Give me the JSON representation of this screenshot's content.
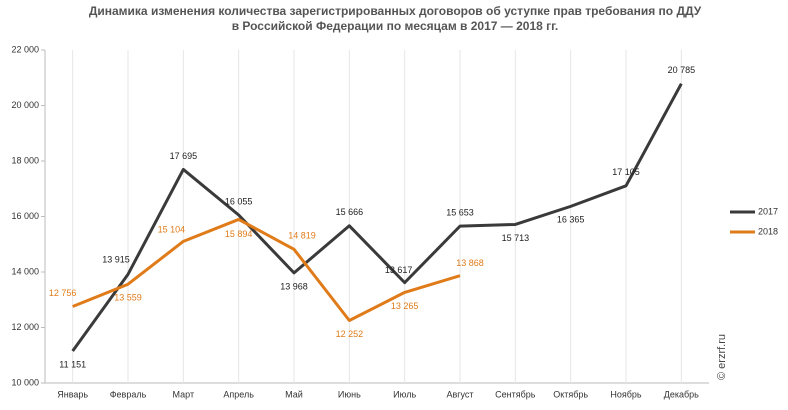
{
  "chart_data": {
    "type": "line",
    "title": [
      "Динамика изменения количества зарегистрированных договоров об уступке прав требования по ДДУ",
      "в Российской Федерации по месяцам в 2017 — 2018 гг."
    ],
    "watermark": "© erzrf.ru",
    "categories": [
      "Январь",
      "Февраль",
      "Март",
      "Апрель",
      "Май",
      "Июнь",
      "Июль",
      "Август",
      "Сентябрь",
      "Октябрь",
      "Ноябрь",
      "Декабрь"
    ],
    "series": [
      {
        "name": "2017",
        "color": "#3a3a3a",
        "values": [
          11151,
          13915,
          17695,
          16055,
          13968,
          15666,
          13617,
          15653,
          15713,
          16365,
          17105,
          20785
        ],
        "value_labels": [
          "11 151",
          "13 915",
          "17 695",
          "16 055",
          "13 968",
          "15 666",
          "13 617",
          "15 653",
          "15 713",
          "16 365",
          "17 105",
          "20 785"
        ]
      },
      {
        "name": "2018",
        "color": "#e07b1a",
        "values": [
          12756,
          13559,
          15104,
          15894,
          14819,
          12252,
          13265,
          13868,
          null,
          null,
          null,
          null
        ],
        "value_labels": [
          "12 756",
          "13 559",
          "15 104",
          "15 894",
          "14 819",
          "12 252",
          "13 265",
          "13 868",
          null,
          null,
          null,
          null
        ]
      }
    ],
    "ylim": [
      10000,
      22000
    ],
    "yticks": [
      {
        "value": 10000,
        "label": "10 000"
      },
      {
        "value": 12000,
        "label": "12 000"
      },
      {
        "value": 14000,
        "label": "14 000"
      },
      {
        "value": 16000,
        "label": "16 000"
      },
      {
        "value": 18000,
        "label": "18 000"
      },
      {
        "value": 20000,
        "label": "20 000"
      },
      {
        "value": 22000,
        "label": "22 000"
      }
    ],
    "legend": "right"
  }
}
